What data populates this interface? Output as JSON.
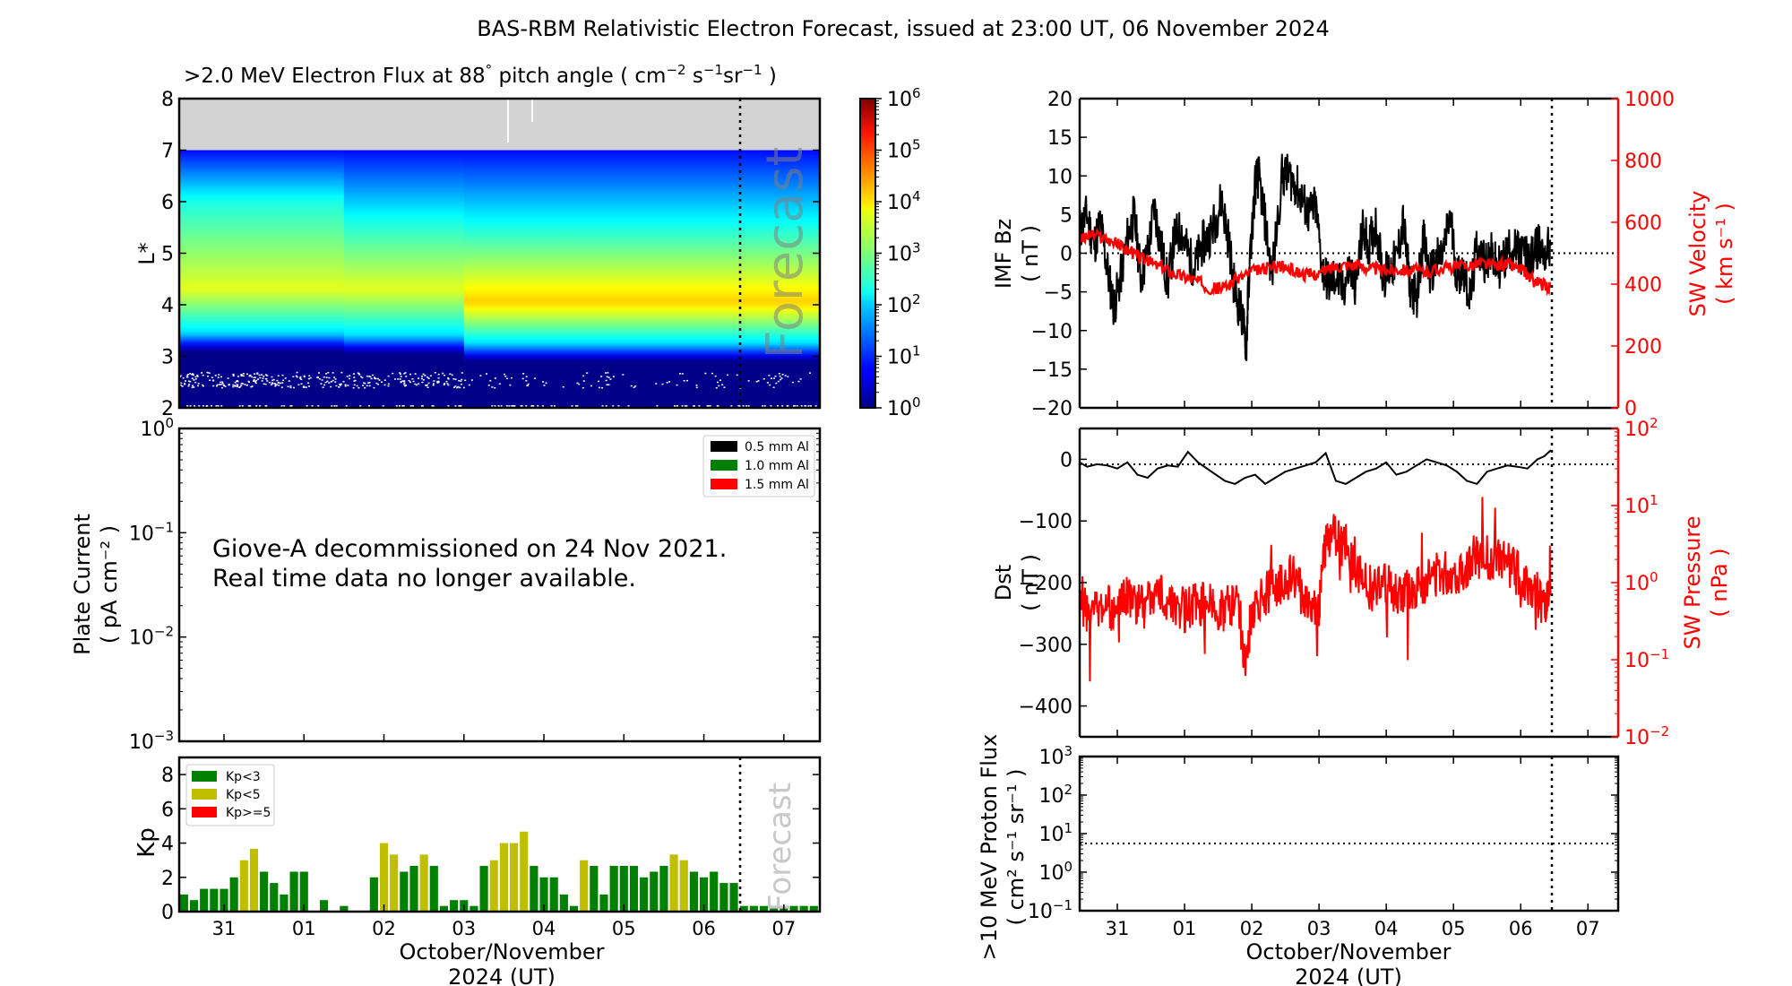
{
  "title": "BAS-RBM Relativistic Electron Forecast, issued at 23:00 UT, 06 November 2024",
  "x_axis": {
    "label_line1": "October/November",
    "label_line2": "2024 (UT)",
    "ticks": [
      "31",
      "01",
      "02",
      "03",
      "04",
      "05",
      "06",
      "07"
    ],
    "range_days": [
      -0.56,
      7.45
    ],
    "forecast_start_day": 6.45
  },
  "forecast_label": "Forecast",
  "chart_data": [
    {
      "id": "electron-flux",
      "type": "heatmap",
      "title": ">2.0 MeV Electron Flux at 88° pitch angle ( cm⁻² s⁻¹ sr⁻¹ )",
      "title_parts": [
        ">2.0 MeV Electron Flux at 88",
        "°",
        "  pitch angle ( cm",
        "−2",
        " s",
        "−1",
        "sr",
        "−1",
        " )"
      ],
      "ylabel": "L*",
      "ylim": [
        2,
        8
      ],
      "yticks": [
        "2",
        "3",
        "4",
        "5",
        "6",
        "7",
        "8"
      ],
      "no_data_above_L": 7,
      "colorbar": {
        "scale": "log",
        "range": [
          1,
          1000000
        ],
        "tick_exponents": [
          "0",
          "1",
          "2",
          "3",
          "4",
          "5",
          "6"
        ],
        "colormap": "jet"
      },
      "profile_note": "log10 flux vs L* per day segment",
      "segments": [
        {
          "day_start": -0.56,
          "day_end": 1.5,
          "peak_L": 4.3,
          "peak_log_flux": 3.6,
          "inner_edge_L": 3.1,
          "outer_fall_L": 6.0
        },
        {
          "day_start": 1.5,
          "day_end": 3.0,
          "peak_L": 4.3,
          "peak_log_flux": 3.6,
          "inner_edge_L": 3.05,
          "outer_fall_L": 5.6
        },
        {
          "day_start": 3.0,
          "day_end": 7.45,
          "peak_L": 4.05,
          "peak_log_flux": 4.05,
          "inner_edge_L": 2.9,
          "outer_fall_L": 5.5
        }
      ]
    },
    {
      "id": "plate-current",
      "type": "line",
      "ylabel_line1": "Plate Current",
      "ylabel_line2": "( pA cm⁻² )",
      "yscale": "log",
      "ylim": [
        0.001,
        1
      ],
      "ytick_exponents": [
        "0",
        "−1",
        "−2",
        "−3"
      ],
      "legend": [
        {
          "label": "0.5 mm Al",
          "color": "#000000"
        },
        {
          "label": "1.0 mm Al",
          "color": "#008000"
        },
        {
          "label": "1.5 mm Al",
          "color": "#ff0000"
        }
      ],
      "legend_position": "top-right",
      "message_line1": "Giove-A decommissioned on 24 Nov 2021.",
      "message_line2": "Real time data no longer available.",
      "series": []
    },
    {
      "id": "kp-index",
      "type": "bar",
      "ylabel": "Kp",
      "ylim": [
        0,
        9
      ],
      "yticks": [
        "0",
        "2",
        "4",
        "6",
        "8"
      ],
      "bar_interval_hours": 3,
      "first_bar_day": -0.5,
      "legend": [
        {
          "label": "Kp<3",
          "color": "#008000"
        },
        {
          "label": "Kp<5",
          "color": "#bfbf00"
        },
        {
          "label": "Kp>=5",
          "color": "#ff0000"
        }
      ],
      "legend_position": "top-left",
      "values": [
        1.0,
        0.67,
        1.33,
        1.33,
        1.33,
        2.0,
        3.0,
        3.67,
        2.33,
        1.67,
        1.0,
        2.33,
        2.33,
        0,
        0.67,
        0,
        0.33,
        0,
        0,
        2.0,
        4.0,
        3.33,
        2.33,
        2.67,
        3.33,
        2.67,
        0.33,
        0.67,
        0.67,
        0.33,
        2.67,
        3.0,
        4.0,
        4.0,
        4.67,
        2.67,
        2.0,
        2.0,
        1.0,
        0.33,
        3.0,
        2.67,
        1.0,
        2.67,
        2.67,
        2.67,
        2.0,
        2.33,
        2.67,
        3.33,
        3.0,
        2.33,
        2.0,
        2.33,
        1.67,
        1.67
      ],
      "forecast_values": [
        0.33,
        0.33,
        0.33,
        0.33,
        0.33,
        0.33,
        0.33,
        0.33
      ]
    },
    {
      "id": "imf-bz-sw-velocity",
      "type": "line",
      "ylabel_line1": "IMF Bz",
      "ylabel_line2": "( nT )",
      "ylim": [
        -20,
        20
      ],
      "yticks": [
        "20",
        "15",
        "10",
        "5",
        "0",
        "−5",
        "−10",
        "−15",
        "−20"
      ],
      "y2label_line1": "SW Velocity",
      "y2label_line2": "( km s⁻¹ )",
      "y2lim": [
        0,
        1000
      ],
      "y2ticks": [
        "1000",
        "800",
        "600",
        "400",
        "200",
        "0"
      ],
      "zero_line": 0,
      "series": [
        {
          "name": "IMF Bz",
          "axis": "left",
          "color": "#000000",
          "x_days": [
            -0.56,
            -0.45,
            -0.35,
            -0.25,
            -0.15,
            -0.05,
            0.05,
            0.15,
            0.25,
            0.35,
            0.45,
            0.55,
            0.65,
            0.75,
            0.85,
            0.95,
            1.05,
            1.15,
            1.25,
            1.35,
            1.45,
            1.55,
            1.65,
            1.75,
            1.85,
            1.92,
            1.95,
            2.05,
            2.1,
            2.2,
            2.3,
            2.45,
            2.55,
            2.65,
            2.75,
            2.85,
            2.95,
            3.05,
            3.15,
            3.25,
            3.35,
            3.45,
            3.55,
            3.65,
            3.75,
            3.85,
            3.95,
            4.05,
            4.15,
            4.25,
            4.35,
            4.45,
            4.55,
            4.65,
            4.75,
            4.85,
            4.95,
            5.05,
            5.15,
            5.25,
            5.35,
            5.45,
            5.55,
            5.65,
            5.75,
            5.85,
            5.95,
            6.05,
            6.15,
            6.25,
            6.35,
            6.45
          ],
          "values": [
            3,
            5,
            1,
            4,
            -2,
            -7,
            -3,
            2,
            5,
            -3,
            0,
            6,
            1,
            -4,
            2,
            3,
            0,
            -2,
            1,
            2,
            4,
            7,
            2,
            -5,
            -8,
            -12,
            -4,
            9,
            10,
            4,
            -3,
            10,
            10,
            9,
            7,
            5,
            6,
            -2,
            -4,
            -3,
            -5,
            -2,
            -4,
            3,
            1,
            4,
            -3,
            -2,
            -1,
            4,
            -4,
            -6,
            2,
            -3,
            -1,
            0,
            5,
            -3,
            -2,
            -6,
            1,
            -1,
            0,
            -2,
            -1,
            1,
            0,
            0,
            -1,
            1,
            0,
            1
          ]
        },
        {
          "name": "SW Velocity",
          "axis": "right",
          "color": "#ff0000",
          "x_days": [
            -0.56,
            -0.4,
            -0.2,
            0,
            0.2,
            0.4,
            0.6,
            0.8,
            1.0,
            1.2,
            1.4,
            1.6,
            1.8,
            2.0,
            2.2,
            2.4,
            2.6,
            2.8,
            3.0,
            3.2,
            3.4,
            3.6,
            3.8,
            4.0,
            4.2,
            4.4,
            4.6,
            4.8,
            5.0,
            5.2,
            5.4,
            5.6,
            5.8,
            6.0,
            6.1,
            6.2,
            6.3,
            6.45
          ],
          "values": [
            540,
            560,
            550,
            530,
            505,
            480,
            460,
            440,
            425,
            410,
            385,
            390,
            420,
            440,
            450,
            460,
            445,
            430,
            435,
            455,
            465,
            460,
            450,
            445,
            450,
            445,
            440,
            450,
            455,
            460,
            470,
            460,
            465,
            450,
            430,
            410,
            400,
            390
          ]
        }
      ]
    },
    {
      "id": "dst-sw-pressure",
      "type": "line",
      "ylabel_line1": "Dst",
      "ylabel_line2": "( nT )",
      "ylim": [
        -450,
        50
      ],
      "yticks": [
        "0",
        "−100",
        "−200",
        "−300",
        "−400"
      ],
      "y2label_line1": "SW Pressure",
      "y2label_line2": "( nPa )",
      "y2scale": "log",
      "y2lim": [
        0.01,
        100
      ],
      "y2tick_exponents": [
        "2",
        "1",
        "0",
        "−1",
        "−2"
      ],
      "zero_line": 0,
      "series": [
        {
          "name": "Dst",
          "axis": "left",
          "color": "#000000",
          "x_days": [
            -0.56,
            -0.45,
            -0.3,
            -0.15,
            0,
            0.15,
            0.3,
            0.45,
            0.6,
            0.75,
            0.9,
            1.05,
            1.2,
            1.4,
            1.6,
            1.75,
            1.9,
            2.05,
            2.2,
            2.35,
            2.5,
            2.65,
            2.8,
            2.95,
            3.1,
            3.25,
            3.4,
            3.55,
            3.7,
            3.85,
            4.0,
            4.15,
            4.3,
            4.45,
            4.6,
            4.75,
            4.9,
            5.05,
            5.2,
            5.35,
            5.5,
            5.65,
            5.8,
            5.95,
            6.1,
            6.25,
            6.35,
            6.45
          ],
          "values": [
            -5,
            -12,
            -8,
            -10,
            -15,
            -5,
            -25,
            -30,
            -15,
            -10,
            -12,
            12,
            -5,
            -20,
            -35,
            -40,
            -30,
            -25,
            -40,
            -30,
            -20,
            -15,
            -10,
            -5,
            10,
            -35,
            -40,
            -30,
            -20,
            -15,
            -5,
            -25,
            -20,
            -10,
            0,
            -5,
            -10,
            -20,
            -35,
            -40,
            -20,
            -15,
            -10,
            -12,
            -15,
            0,
            5,
            15
          ]
        },
        {
          "name": "SW Pressure",
          "axis": "right",
          "color": "#ff0000",
          "x_days": [
            -0.56,
            -0.4,
            -0.2,
            0,
            0.1,
            0.2,
            0.4,
            0.6,
            0.8,
            1.0,
            1.2,
            1.4,
            1.6,
            1.8,
            1.9,
            2.0,
            2.2,
            2.4,
            2.6,
            2.8,
            3.0,
            3.1,
            3.2,
            3.4,
            3.6,
            3.8,
            4.0,
            4.2,
            4.4,
            4.6,
            4.8,
            5.0,
            5.2,
            5.4,
            5.6,
            5.8,
            6.0,
            6.2,
            6.35,
            6.45
          ],
          "values": [
            0.5,
            0.4,
            0.55,
            0.35,
            0.8,
            0.6,
            0.5,
            0.7,
            0.6,
            0.45,
            0.55,
            0.5,
            0.45,
            0.6,
            0.08,
            0.4,
            0.7,
            1.0,
            1.2,
            0.6,
            0.5,
            3.5,
            4.0,
            3.0,
            1.2,
            0.8,
            0.9,
            0.7,
            0.8,
            1.1,
            1.4,
            1.3,
            1.6,
            2.2,
            2.0,
            1.8,
            1.2,
            0.8,
            0.5,
            0.6
          ]
        }
      ]
    },
    {
      "id": "proton-flux",
      "type": "line",
      "ylabel_line1": ">10 MeV Proton Flux",
      "ylabel_line2": "( cm² s⁻¹ sr⁻¹ )",
      "yscale": "log",
      "ylim": [
        0.1,
        1000
      ],
      "ytick_exponents": [
        "3",
        "2",
        "1",
        "0",
        "−1"
      ],
      "threshold": 10,
      "series": []
    }
  ]
}
